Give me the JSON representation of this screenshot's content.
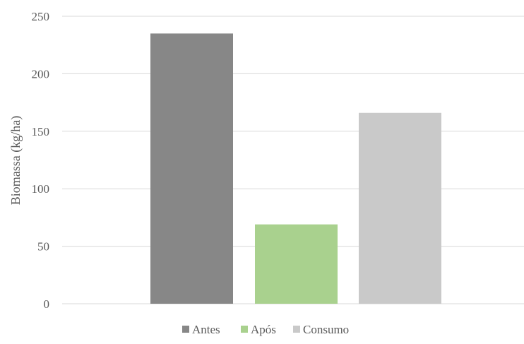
{
  "chart_data": {
    "type": "bar",
    "ylabel": "Biomassa (kg/ha)",
    "xlabel": "",
    "title": "",
    "ylim": [
      0,
      250
    ],
    "yticks": [
      0,
      50,
      100,
      150,
      200,
      250
    ],
    "grid": true,
    "legend_position": "bottom",
    "series": [
      {
        "name": "Antes",
        "value": 235,
        "color": "#878787"
      },
      {
        "name": "Após",
        "value": 69,
        "color": "#a9d18e"
      },
      {
        "name": "Consumo",
        "value": 166,
        "color": "#c9c9c9"
      }
    ]
  },
  "colors": {
    "grid": "#d9d9d9",
    "text": "#595959"
  }
}
